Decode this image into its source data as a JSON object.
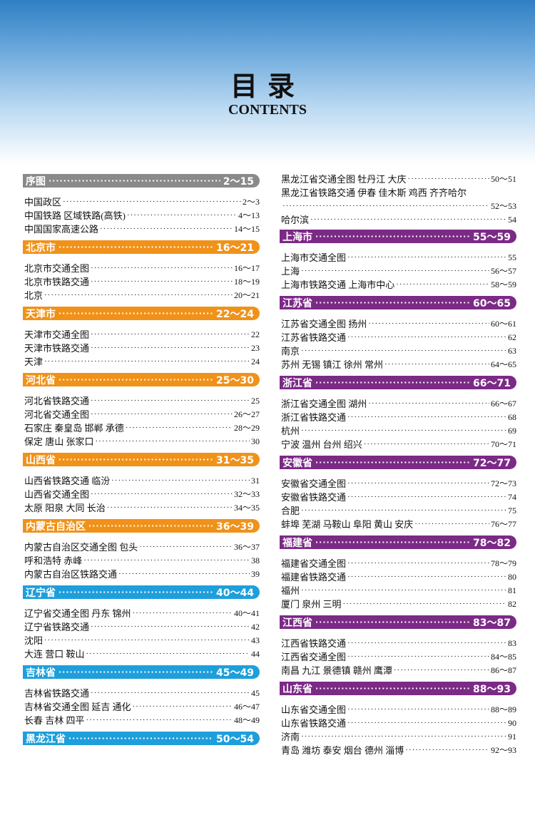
{
  "header": {
    "title": "目录",
    "subtitle": "CONTENTS"
  },
  "colors": {
    "gray": "#8a8a8a",
    "orange": "#f0921a",
    "purple": "#7b2a86",
    "blue": "#1e9fdc"
  },
  "left": [
    {
      "name": "序图",
      "pages": "2～15",
      "color": "gray",
      "items": [
        {
          "t": "中国政区",
          "p": "2～3"
        },
        {
          "t": "中国铁路 区域铁路(高铁)",
          "p": "4～13"
        },
        {
          "t": "中国国家高速公路",
          "p": "14～15"
        }
      ]
    },
    {
      "name": "北京市",
      "pages": "16～21",
      "color": "orange",
      "items": [
        {
          "t": "北京市交通全图",
          "p": "16～17"
        },
        {
          "t": "北京市铁路交通",
          "p": "18～19"
        },
        {
          "t": "北京",
          "p": "20～21"
        }
      ]
    },
    {
      "name": "天津市",
      "pages": "22～24",
      "color": "orange",
      "items": [
        {
          "t": "天津市交通全图",
          "p": "22"
        },
        {
          "t": "天津市铁路交通",
          "p": "23"
        },
        {
          "t": "天津",
          "p": "24"
        }
      ]
    },
    {
      "name": "河北省",
      "pages": "25～30",
      "color": "orange",
      "items": [
        {
          "t": "河北省铁路交通",
          "p": "25"
        },
        {
          "t": "河北省交通全图",
          "p": "26～27"
        },
        {
          "t": "石家庄 秦皇岛 邯郸 承德",
          "p": "28～29"
        },
        {
          "t": "保定 唐山 张家口",
          "p": "30"
        }
      ]
    },
    {
      "name": "山西省",
      "pages": "31～35",
      "color": "orange",
      "items": [
        {
          "t": "山西省铁路交通 临汾",
          "p": "31"
        },
        {
          "t": "山西省交通全图",
          "p": "32～33"
        },
        {
          "t": "太原 阳泉 大同 长治",
          "p": "34～35"
        }
      ]
    },
    {
      "name": "内蒙古自治区",
      "pages": "36～39",
      "color": "orange",
      "items": [
        {
          "t": "内蒙古自治区交通全图 包头",
          "p": "36～37"
        },
        {
          "t": "呼和浩特 赤峰",
          "p": "38"
        },
        {
          "t": "内蒙古自治区铁路交通",
          "p": "39"
        }
      ]
    },
    {
      "name": "辽宁省",
      "pages": "40～44",
      "color": "blue",
      "items": [
        {
          "t": "辽宁省交通全图 丹东 锦州",
          "p": "40～41"
        },
        {
          "t": "辽宁省铁路交通",
          "p": "42"
        },
        {
          "t": "沈阳",
          "p": "43"
        },
        {
          "t": "大连 营口 鞍山",
          "p": "44"
        }
      ]
    },
    {
      "name": "吉林省",
      "pages": "45～49",
      "color": "blue",
      "items": [
        {
          "t": "吉林省铁路交通",
          "p": "45"
        },
        {
          "t": "吉林省交通全图 延吉 通化",
          "p": "46～47"
        },
        {
          "t": "长春 吉林 四平",
          "p": "48～49"
        }
      ]
    },
    {
      "name": "黑龙江省",
      "pages": "50～54",
      "color": "blue",
      "items": []
    }
  ],
  "right_top": [
    {
      "t": "黑龙江省交通全图 牡丹江 大庆",
      "p": "50～51"
    }
  ],
  "right_wrap": {
    "line1": "黑龙江省铁路交通 伊春 佳木斯 鸡西 齐齐哈尔",
    "p": "52～53"
  },
  "right_top2": [
    {
      "t": "哈尔滨",
      "p": "54"
    }
  ],
  "right": [
    {
      "name": "上海市",
      "pages": "55～59",
      "color": "purple",
      "items": [
        {
          "t": "上海市交通全图",
          "p": "55"
        },
        {
          "t": "上海",
          "p": "56～57"
        },
        {
          "t": "上海市铁路交通 上海市中心",
          "p": "58～59"
        }
      ]
    },
    {
      "name": "江苏省",
      "pages": "60～65",
      "color": "purple",
      "items": [
        {
          "t": "江苏省交通全图 扬州",
          "p": "60～61"
        },
        {
          "t": "江苏省铁路交通",
          "p": "62"
        },
        {
          "t": "南京",
          "p": "63"
        },
        {
          "t": "苏州 无锡 镇江 徐州 常州",
          "p": "64～65"
        }
      ]
    },
    {
      "name": "浙江省",
      "pages": "66～71",
      "color": "purple",
      "items": [
        {
          "t": "浙江省交通全图 湖州",
          "p": "66～67"
        },
        {
          "t": "浙江省铁路交通",
          "p": "68"
        },
        {
          "t": "杭州",
          "p": "69"
        },
        {
          "t": "宁波 温州 台州 绍兴",
          "p": "70～71"
        }
      ]
    },
    {
      "name": "安徽省",
      "pages": "72～77",
      "color": "purple",
      "items": [
        {
          "t": "安徽省交通全图",
          "p": "72～73"
        },
        {
          "t": "安徽省铁路交通",
          "p": "74"
        },
        {
          "t": "合肥",
          "p": "75"
        },
        {
          "t": "蚌埠 芜湖 马鞍山 阜阳 黄山 安庆",
          "p": "76～77"
        }
      ]
    },
    {
      "name": "福建省",
      "pages": "78～82",
      "color": "purple",
      "items": [
        {
          "t": "福建省交通全图",
          "p": "78～79"
        },
        {
          "t": "福建省铁路交通",
          "p": "80"
        },
        {
          "t": "福州",
          "p": "81"
        },
        {
          "t": "厦门 泉州 三明",
          "p": "82"
        }
      ]
    },
    {
      "name": "江西省",
      "pages": "83～87",
      "color": "purple",
      "items": [
        {
          "t": "江西省铁路交通",
          "p": "83"
        },
        {
          "t": "江西省交通全图",
          "p": "84～85"
        },
        {
          "t": "南昌 九江 景德镇 赣州 鹰潭",
          "p": "86～87"
        }
      ]
    },
    {
      "name": "山东省",
      "pages": "88～93",
      "color": "purple",
      "items": [
        {
          "t": "山东省交通全图",
          "p": "88～89"
        },
        {
          "t": "山东省铁路交通",
          "p": "90"
        },
        {
          "t": "济南",
          "p": "91"
        },
        {
          "t": "青岛 潍坊 泰安 烟台 德州 淄博",
          "p": "92～93"
        }
      ]
    }
  ]
}
